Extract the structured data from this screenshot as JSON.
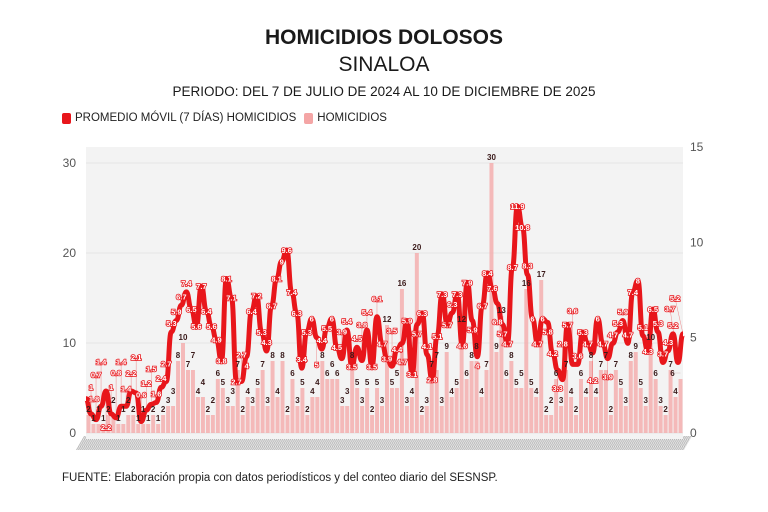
{
  "header": {
    "title": "HOMICIDIOS DOLOSOS",
    "subtitle": "SINALOA",
    "period": "PERIODO: DEL 7 DE JULIO DE 2024 AL 10 DE DICIEMBRE DE 2025"
  },
  "legend": [
    {
      "label": "PROMEDIO MÓVIL (7 DÍAS) HOMICIDIOS",
      "color": "#e8161b"
    },
    {
      "label": "HOMICIDIOS",
      "color": "#f4a5a5"
    }
  ],
  "footer": "FUENTE: Elaboración propia con datos periodísticos y del conteo diario del SESNSP.",
  "chart_data": {
    "type": "bar+line",
    "xlim": [
      "2024-07-07",
      "2025-12-10"
    ],
    "left_axis": {
      "ylim": [
        0,
        30
      ],
      "ticks": [
        "0",
        "10",
        "20",
        "30"
      ],
      "series": "HOMICIDIOS"
    },
    "right_axis": {
      "ylim": [
        0,
        15
      ],
      "ticks": [
        "0",
        "5",
        "10",
        "15"
      ],
      "series": "PROMEDIO MÓVIL (7 DÍAS) HOMICIDIOS"
    },
    "grid": true,
    "legend_position": "top-left",
    "series": [
      {
        "name": "HOMICIDIOS",
        "type": "bar",
        "axis": "left",
        "color": "#f4a5a5",
        "values": [
          2,
          1,
          1,
          1,
          2,
          2,
          1,
          1,
          2,
          2,
          1,
          1,
          1,
          2,
          1,
          2,
          3,
          3,
          8,
          10,
          7,
          7,
          4,
          4,
          2,
          2,
          6,
          5,
          3,
          3,
          7,
          2,
          4,
          3,
          5,
          7,
          3,
          8,
          4,
          8,
          2,
          6,
          3,
          5,
          2,
          4,
          4,
          8,
          6,
          6,
          6,
          3,
          3,
          8,
          5,
          3,
          5,
          2,
          5,
          3,
          12,
          5,
          5,
          16,
          3,
          4,
          20,
          2,
          3,
          7,
          7,
          3,
          9,
          4,
          5,
          12,
          6,
          8,
          8,
          4,
          7,
          30,
          9,
          13,
          6,
          8,
          5,
          5,
          16,
          5,
          4,
          17,
          2,
          2,
          6,
          3,
          7,
          4,
          2,
          6,
          4,
          8,
          4,
          7,
          7,
          2,
          7,
          5,
          3,
          8,
          9,
          5,
          3,
          10,
          6,
          3,
          2,
          7,
          4,
          6
        ]
      },
      {
        "name": "PROMEDIO MÓVIL (7 DÍAS) HOMICIDIOS",
        "type": "line",
        "axis": "right",
        "color": "#e8161b",
        "values": [
          1.8,
          1.0,
          0.7,
          1.4,
          2.2,
          1.0,
          0.8,
          1.4,
          1.4,
          2.2,
          2.1,
          0.6,
          1.2,
          1.5,
          1.6,
          2.4,
          2.7,
          5.3,
          5.9,
          6.7,
          7.4,
          6.5,
          5.6,
          7.7,
          6.4,
          5.6,
          4.9,
          3.8,
          8.1,
          7.1,
          2.7,
          2.7,
          4.0,
          6.4,
          7.2,
          5.3,
          4.3,
          6.7,
          8.1,
          9.0,
          9.6,
          7.4,
          6.3,
          3.4,
          5.3,
          6.0,
          5.0,
          4.4,
          5.5,
          6.0,
          4.5,
          3.9,
          5.4,
          3.5,
          4.5,
          3.8,
          5.4,
          3.5,
          6.1,
          4.7,
          3.9,
          3.5,
          4.4,
          4.7,
          5.9,
          3.1,
          5.7,
          6.3,
          4.1,
          2.8,
          5.1,
          7.3,
          5.7,
          6.3,
          7.3,
          4.6,
          7.9,
          5.9,
          4.0,
          6.7,
          8.4,
          7.6,
          6.8,
          5.7,
          4.7,
          8.7,
          11.9,
          10.8,
          8.3,
          6.0,
          4.7,
          6.0,
          5.8,
          4.2,
          3.3,
          2.8,
          5.7,
          3.6,
          3.6,
          5.3,
          4.7,
          4.2,
          6.0,
          4.7,
          3.9,
          4.7,
          5.3,
          5.9,
          4.7,
          7.4,
          8.0,
          5.1,
          4.3,
          6.5,
          5.3,
          3.7,
          4.3,
          5.2,
          3.7,
          5.2
        ]
      }
    ]
  }
}
